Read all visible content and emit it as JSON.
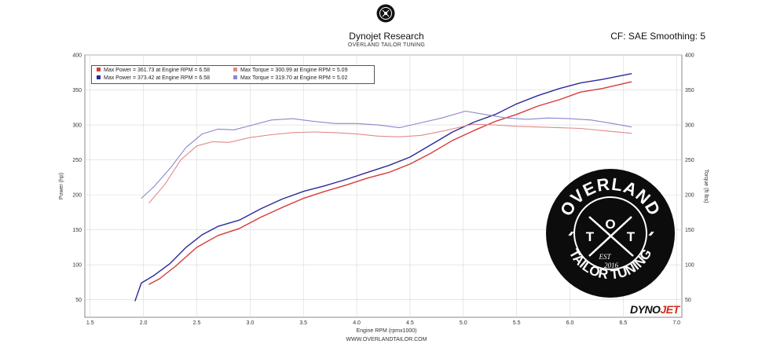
{
  "header": {
    "title": "Dynojet Research",
    "subtitle": "OVERLAND TAILOR TUNING",
    "correction": "CF: SAE Smoothing: 5"
  },
  "footer": {
    "url": "WWW.OVERLANDTAILOR.COM"
  },
  "brand": {
    "part1": "DYNO",
    "part2": "JET"
  },
  "logo": {
    "top_text": "OVERLAND",
    "bottom_text": "TAILOR TUNING",
    "letters": [
      "T",
      "O",
      "T"
    ],
    "est": "EST",
    "year": "2016"
  },
  "colors": {
    "power_run1": "#d63a3a",
    "power_run2": "#2a2a9a",
    "torque_run1": "#e08a8a",
    "torque_run2": "#8888cc",
    "plot_bg": "#ffffff",
    "grid": "#d8d8d8"
  },
  "legend": [
    {
      "text": "Max Power = 361.73 at Engine RPM = 6.58",
      "color": "#d63a3a"
    },
    {
      "text": "Max Torque = 300.99 at Engine RPM = 5.09",
      "color": "#e08a8a"
    },
    {
      "text": "Max Power = 373.42 at Engine RPM = 6.58",
      "color": "#2a2a9a"
    },
    {
      "text": "Max Torque = 319.70 at Engine RPM = 5.02",
      "color": "#8888cc"
    }
  ],
  "chart_data": {
    "type": "line",
    "xlabel": "Engine RPM (rpmx1000)",
    "ylabel": "Power (hp)",
    "y2label": "Torque (ft lbs)",
    "xlim": [
      1.45,
      7.05
    ],
    "ylim": [
      25,
      400
    ],
    "xticks": [
      1.5,
      2.0,
      2.5,
      3.0,
      3.5,
      4.0,
      4.5,
      5.0,
      5.5,
      6.0,
      6.5,
      7.0
    ],
    "yticks": [
      50,
      100,
      150,
      200,
      250,
      300,
      350,
      400
    ],
    "grid": true,
    "legend_position": "top-left",
    "series": [
      {
        "axis": "left",
        "x": [
          2.05,
          2.15,
          2.3,
          2.5,
          2.7,
          2.9,
          3.1,
          3.3,
          3.5,
          3.7,
          3.9,
          4.1,
          4.3,
          4.5,
          4.7,
          4.9,
          5.1,
          5.3,
          5.5,
          5.7,
          5.9,
          6.1,
          6.3,
          6.58
        ],
        "values": [
          72,
          80,
          98,
          125,
          142,
          152,
          168,
          182,
          195,
          205,
          214,
          224,
          232,
          244,
          260,
          278,
          292,
          305,
          315,
          327,
          336,
          347,
          352,
          361.73
        ]
      },
      {
        "axis": "left",
        "x": [
          1.92,
          1.98,
          2.1,
          2.25,
          2.4,
          2.55,
          2.7,
          2.9,
          3.1,
          3.3,
          3.5,
          3.7,
          3.9,
          4.1,
          4.3,
          4.5,
          4.7,
          4.9,
          5.1,
          5.3,
          5.5,
          5.7,
          5.9,
          6.1,
          6.3,
          6.58
        ],
        "values": [
          48,
          74,
          85,
          102,
          125,
          143,
          155,
          164,
          180,
          194,
          205,
          213,
          222,
          232,
          242,
          254,
          272,
          290,
          304,
          315,
          330,
          342,
          352,
          360,
          365,
          373.42
        ]
      },
      {
        "axis": "right",
        "x": [
          2.05,
          2.2,
          2.35,
          2.5,
          2.65,
          2.8,
          3.0,
          3.2,
          3.4,
          3.6,
          3.8,
          4.0,
          4.2,
          4.4,
          4.6,
          4.8,
          5.09,
          5.3,
          5.5,
          5.7,
          5.9,
          6.1,
          6.3,
          6.58
        ],
        "values": [
          188,
          215,
          250,
          270,
          276,
          275,
          282,
          286,
          289,
          290,
          289,
          287,
          284,
          283,
          285,
          291,
          300.99,
          300,
          298,
          297,
          296,
          295,
          292,
          288
        ]
      },
      {
        "axis": "right",
        "x": [
          1.98,
          2.1,
          2.25,
          2.4,
          2.55,
          2.7,
          2.85,
          3.0,
          3.2,
          3.4,
          3.6,
          3.8,
          4.0,
          4.2,
          4.4,
          4.6,
          4.8,
          5.02,
          5.2,
          5.4,
          5.6,
          5.8,
          6.0,
          6.2,
          6.4,
          6.58
        ],
        "values": [
          195,
          212,
          238,
          268,
          287,
          294,
          293,
          299,
          307,
          309,
          305,
          302,
          302,
          300,
          296,
          303,
          310,
          319.7,
          315,
          310,
          308,
          310,
          309,
          307,
          302,
          297
        ]
      }
    ]
  }
}
